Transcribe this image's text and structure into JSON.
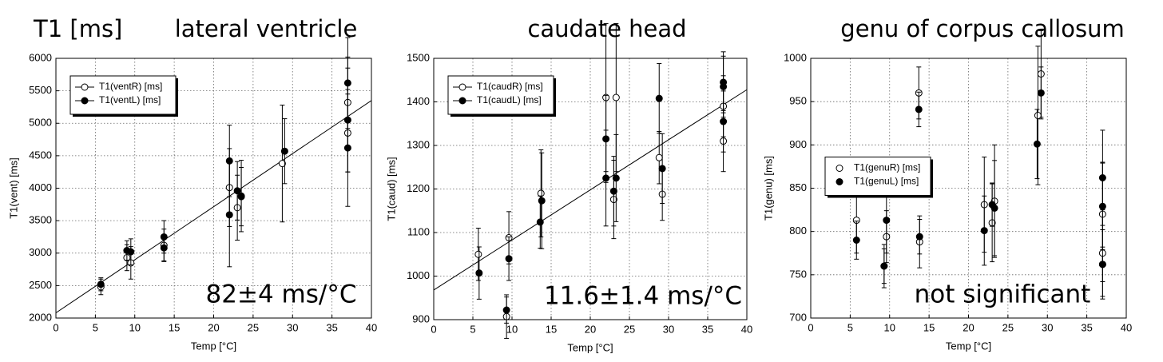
{
  "heading": "T1 [ms]",
  "chart_data": [
    {
      "type": "scatter",
      "title": "lateral ventricle",
      "annotation": "82±4 ms/°C",
      "xlabel": "Temp [°C]",
      "ylabel": "T1(vent) [ms]",
      "xlim": [
        0,
        40
      ],
      "ylim": [
        2000,
        6000
      ],
      "xticks": [
        0,
        5,
        10,
        15,
        20,
        25,
        30,
        35,
        40
      ],
      "yticks": [
        2000,
        2500,
        3000,
        3500,
        4000,
        4500,
        5000,
        5500,
        6000
      ],
      "grid": true,
      "legend_position": "upper left",
      "fit": {
        "x": [
          0,
          40
        ],
        "values": [
          2080,
          5350
        ]
      },
      "series": [
        {
          "name": "T1(ventR) [ms]",
          "color": "#000000",
          "marker": "open",
          "x": [
            5.7,
            9.0,
            9.5,
            13.7,
            22.0,
            23.0,
            23.5,
            28.7,
            37.0,
            37.0
          ],
          "values": [
            2480,
            2930,
            2850,
            3120,
            4010,
            3700,
            3880,
            4380,
            5320,
            4850
          ],
          "errors": [
            120,
            200,
            250,
            250,
            600,
            500,
            550,
            900,
            700,
            600
          ]
        },
        {
          "name": "T1(ventL) [ms]",
          "color": "#000000",
          "marker": "filled",
          "x": [
            5.7,
            9.0,
            9.5,
            13.7,
            13.7,
            22.0,
            22.0,
            23.0,
            23.5,
            29.0,
            37.0,
            37.0,
            37.0
          ],
          "values": [
            2520,
            3040,
            3020,
            3250,
            3080,
            4420,
            3590,
            3960,
            3870,
            4570,
            5620,
            4620,
            5050
          ],
          "errors": [
            100,
            150,
            200,
            250,
            200,
            550,
            800,
            450,
            450,
            500,
            700,
            900,
            800
          ]
        }
      ]
    },
    {
      "type": "scatter",
      "title": "caudate head",
      "annotation": "11.6±1.4 ms/°C",
      "xlabel": "Temp [°C]",
      "ylabel": "T1(caud) [ms]",
      "xlim": [
        0,
        40
      ],
      "ylim": [
        900,
        1500
      ],
      "xticks": [
        0,
        5,
        10,
        15,
        20,
        25,
        30,
        35,
        40
      ],
      "yticks": [
        900,
        1000,
        1100,
        1200,
        1300,
        1400,
        1500
      ],
      "grid": true,
      "legend_position": "upper left",
      "fit": {
        "x": [
          0,
          40
        ],
        "values": [
          968,
          1428
        ]
      },
      "series": [
        {
          "name": "T1(caudR) [ms]",
          "color": "#000000",
          "marker": "open",
          "x": [
            5.7,
            9.3,
            9.6,
            13.7,
            22.0,
            23.0,
            23.3,
            28.8,
            29.2,
            37.0,
            37.0
          ],
          "values": [
            1050,
            907,
            1088,
            1190,
            1410,
            1176,
            1410,
            1272,
            1188,
            1390,
            1310
          ],
          "errors": [
            60,
            50,
            60,
            100,
            170,
            90,
            170,
            60,
            60,
            70,
            70
          ]
        },
        {
          "name": "T1(caudL) [ms]",
          "color": "#000000",
          "marker": "filled",
          "x": [
            5.8,
            9.3,
            9.6,
            13.6,
            13.8,
            22.0,
            22.0,
            23.0,
            23.3,
            28.8,
            29.2,
            37.0,
            37.0,
            37.0
          ],
          "values": [
            1007,
            922,
            1040,
            1124,
            1173,
            1315,
            1225,
            1195,
            1225,
            1408,
            1247,
            1445,
            1435,
            1355
          ],
          "errors": [
            60,
            30,
            50,
            60,
            110,
            100,
            110,
            80,
            100,
            80,
            80,
            70,
            70,
            70
          ]
        }
      ]
    },
    {
      "type": "scatter",
      "title": "genu of corpus callosum",
      "annotation": "not significant",
      "xlabel": "Temp [°C]",
      "ylabel": "T1(genu) [ms]",
      "xlim": [
        0,
        40
      ],
      "ylim": [
        700,
        1000
      ],
      "xticks": [
        0,
        5,
        10,
        15,
        20,
        25,
        30,
        35,
        40
      ],
      "yticks": [
        700,
        750,
        800,
        850,
        900,
        950,
        1000
      ],
      "grid": true,
      "legend_position": "center left",
      "series": [
        {
          "name": "T1(genuR) [ms]",
          "color": "#000000",
          "marker": "open",
          "x": [
            5.8,
            9.3,
            9.6,
            13.7,
            13.8,
            22.0,
            23.0,
            23.3,
            28.8,
            29.2,
            37.0,
            37.0,
            37.0
          ],
          "values": [
            813,
            760,
            794,
            960,
            788,
            831,
            810,
            835,
            934,
            982,
            775,
            820,
            762
          ],
          "errors": [
            38,
            25,
            30,
            30,
            30,
            55,
            45,
            65,
            80,
            50,
            50,
            60,
            40
          ]
        },
        {
          "name": "T1(genuL) [ms]",
          "color": "#000000",
          "marker": "filled",
          "x": [
            5.8,
            9.3,
            9.6,
            13.7,
            13.8,
            22.0,
            23.3,
            23.0,
            28.7,
            29.2,
            37.0,
            37.0,
            37.0
          ],
          "values": [
            790,
            760,
            813,
            941,
            794,
            801,
            827,
            831,
            901,
            960,
            862,
            829,
            762
          ],
          "errors": [
            22,
            20,
            38,
            20,
            20,
            40,
            55,
            25,
            40,
            30,
            55,
            50,
            20
          ]
        }
      ]
    }
  ]
}
